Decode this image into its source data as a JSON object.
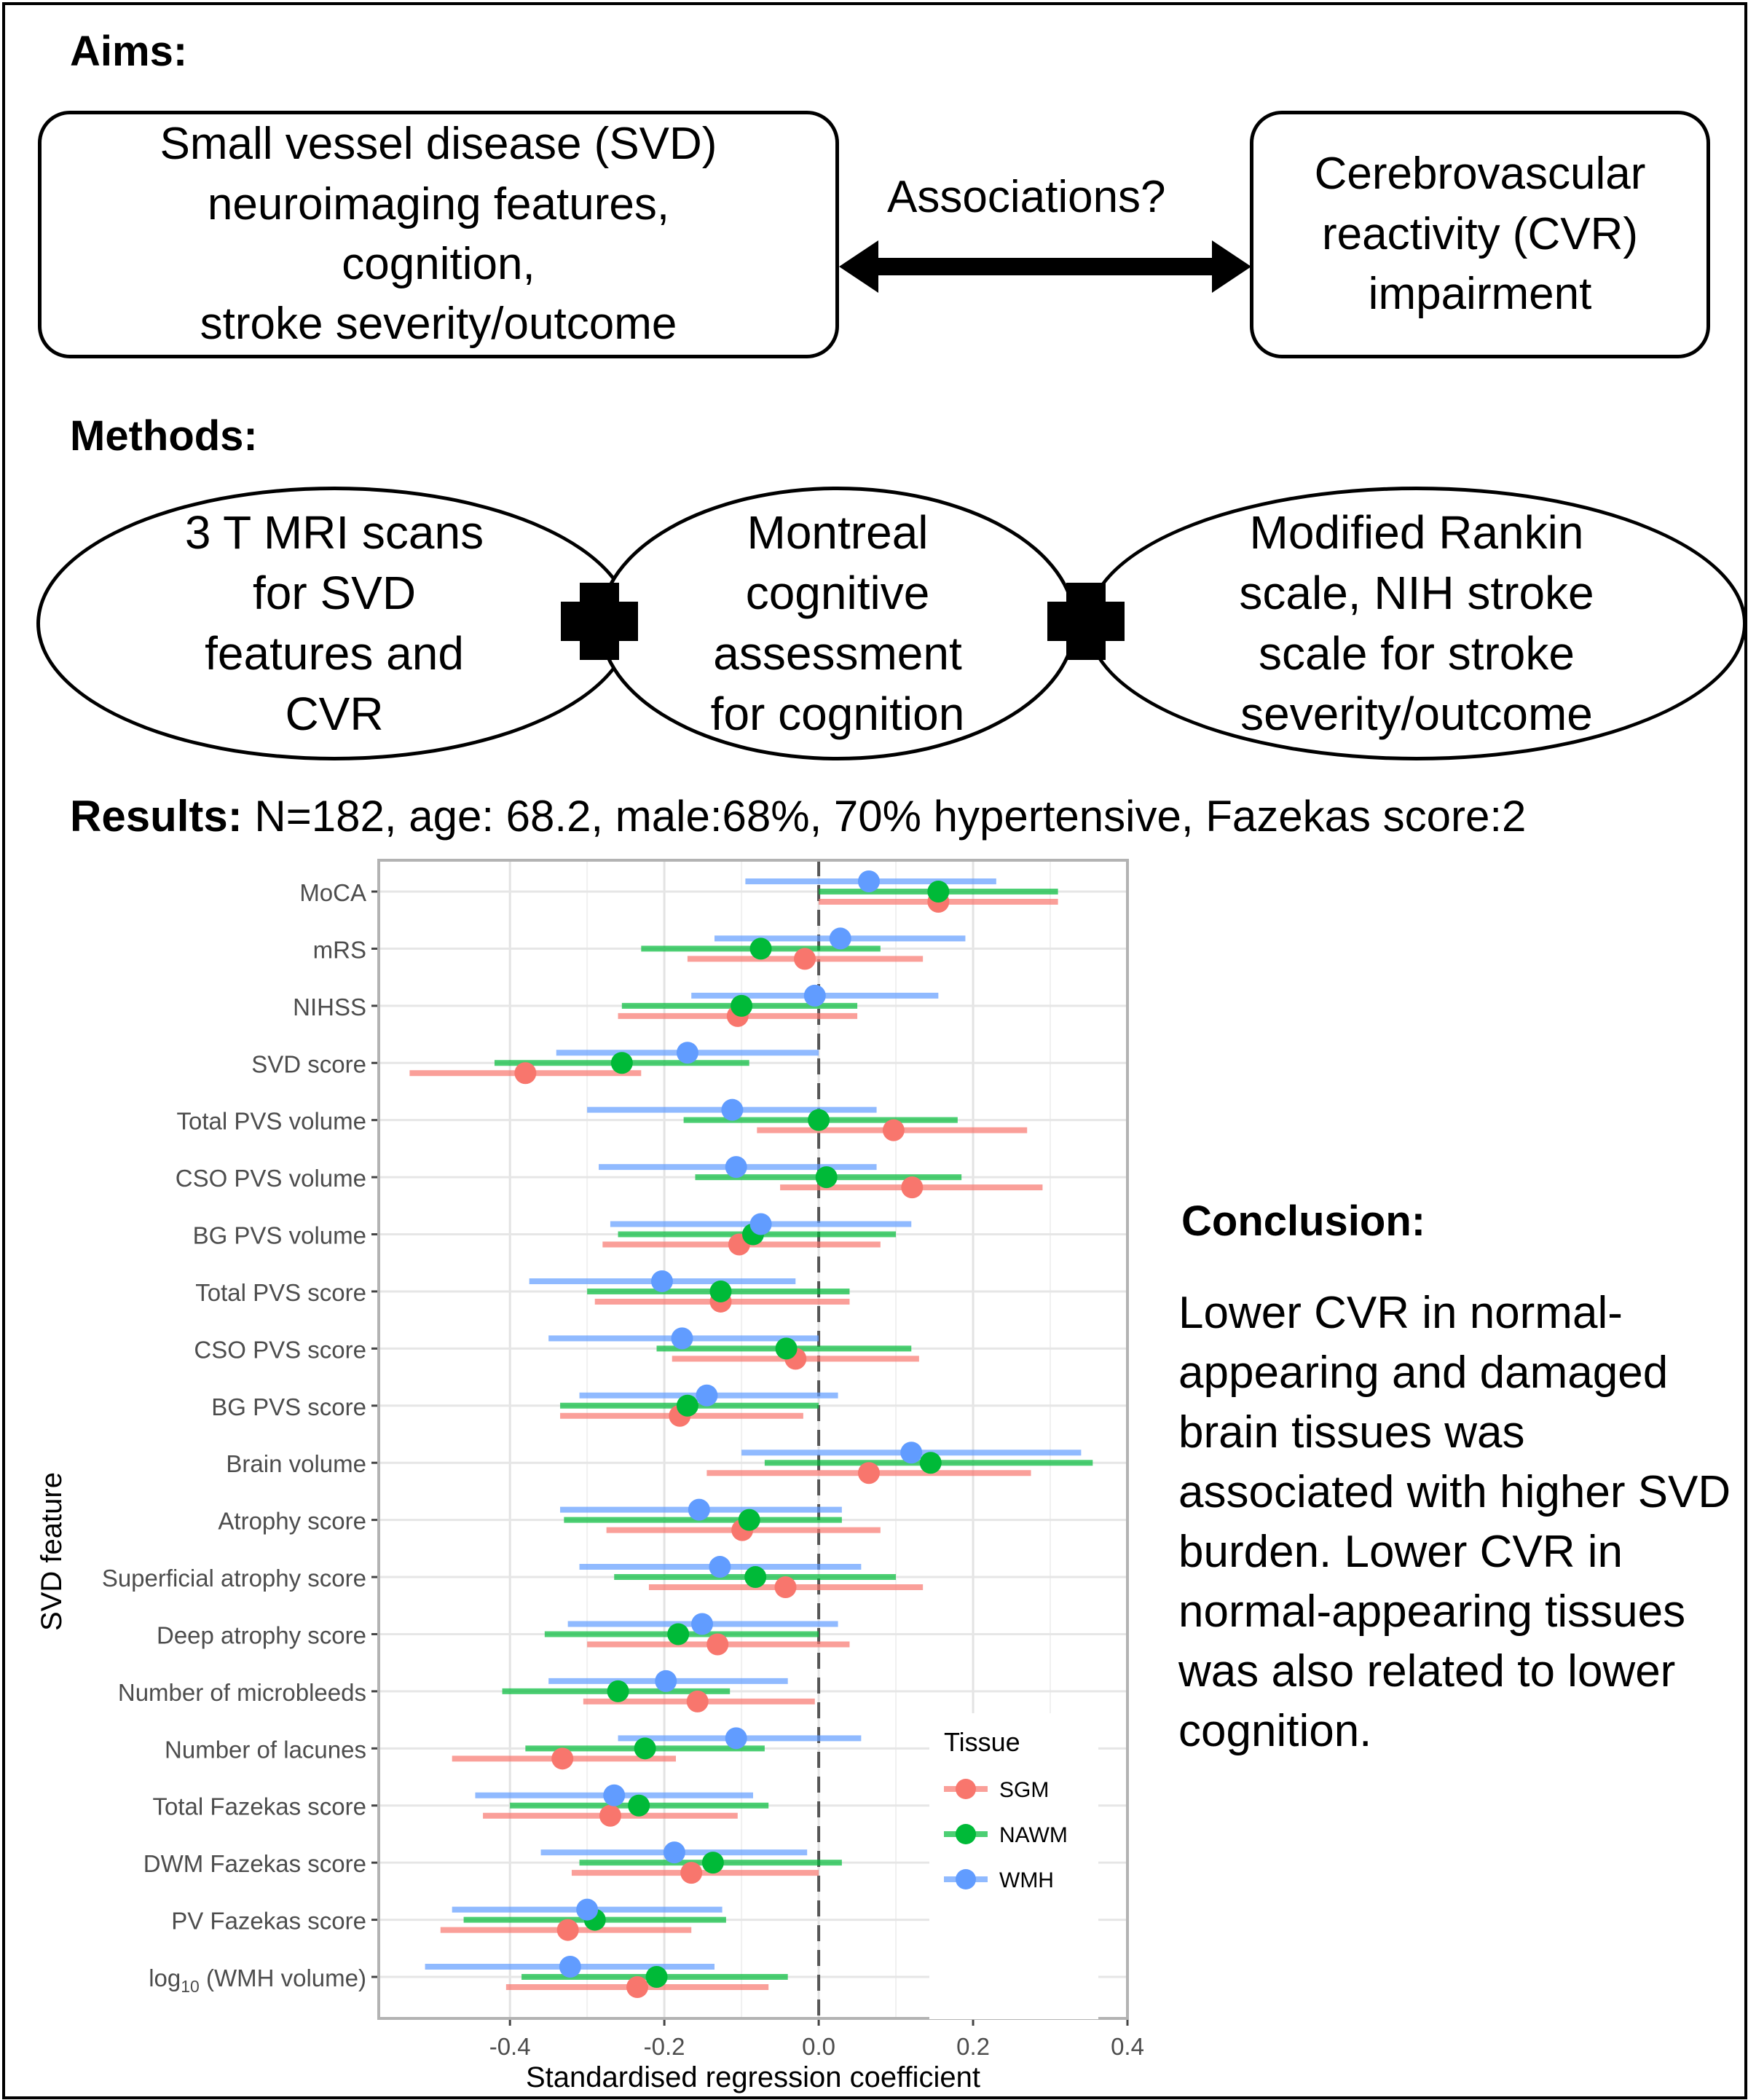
{
  "aims": {
    "heading": "Aims:",
    "left_box": "Small vessel disease (SVD)\nneuroimaging features,\ncognition,\nstroke severity/outcome",
    "arrow_label": "Associations?",
    "right_box": "Cerebrovascular\nreactivity (CVR)\nimpairment"
  },
  "methods": {
    "heading": "Methods:",
    "ellipses": [
      "3 T MRI scans\nfor SVD\nfeatures and\nCVR",
      "Montreal\ncognitive\nassessment\nfor cognition",
      "Modified Rankin\nscale, NIH stroke\nscale for stroke\nseverity/outcome"
    ]
  },
  "results": {
    "heading": "Results:",
    "summary": "N=182, age: 68.2, male:68%, 70% hypertensive, Fazekas score:2"
  },
  "conclusion": {
    "heading": "Conclusion:",
    "text": "Lower CVR in normal-appearing and damaged brain tissues was associated with higher SVD burden. Lower CVR in normal-appearing tissues was also related to lower cognition."
  },
  "colors": {
    "SGM": "#F8766D",
    "NAWM": "#00BA38",
    "WMH": "#619CFF"
  },
  "chart_data": {
    "type": "forest",
    "xlabel": "Standardised regression coefficient",
    "ylabel": "SVD feature",
    "xlim": [
      -0.57,
      0.4
    ],
    "xticks": [
      -0.4,
      -0.2,
      0.0,
      0.2,
      0.4
    ],
    "xtick_labels": [
      "-0.4",
      "-0.2",
      "0.0",
      "0.2",
      "0.4"
    ],
    "reference_line": 0,
    "grid": true,
    "legend": {
      "title": "Tissue",
      "position": "bottom-right",
      "entries": [
        "SGM",
        "NAWM",
        "WMH"
      ]
    },
    "features": [
      "MoCA",
      "mRS",
      "NIHSS",
      "SVD score",
      "Total PVS volume",
      "CSO PVS volume",
      "BG PVS volume",
      "Total PVS score",
      "CSO PVS score",
      "BG PVS score",
      "Brain volume",
      "Atrophy score",
      "Superficial atrophy score",
      "Deep atrophy score",
      "Number of microbleeds",
      "Number of lacunes",
      "Total Fazekas score",
      "DWM Fazekas score",
      "PV Fazekas score",
      "log10 (WMH volume)"
    ],
    "series": [
      {
        "name": "SGM",
        "estimate": [
          0.155,
          -0.018,
          -0.105,
          -0.38,
          0.097,
          0.121,
          -0.103,
          -0.127,
          -0.03,
          -0.18,
          0.065,
          -0.099,
          -0.043,
          -0.131,
          -0.157,
          -0.332,
          -0.27,
          -0.165,
          -0.325,
          -0.235
        ],
        "lower": [
          0.0,
          -0.17,
          -0.26,
          -0.53,
          -0.08,
          -0.05,
          -0.28,
          -0.29,
          -0.19,
          -0.335,
          -0.145,
          -0.275,
          -0.22,
          -0.3,
          -0.305,
          -0.475,
          -0.435,
          -0.32,
          -0.49,
          -0.405
        ],
        "upper": [
          0.31,
          0.135,
          0.05,
          -0.23,
          0.27,
          0.29,
          0.08,
          0.04,
          0.13,
          -0.02,
          0.275,
          0.08,
          0.135,
          0.04,
          -0.005,
          -0.185,
          -0.105,
          0.0,
          -0.165,
          -0.065
        ]
      },
      {
        "name": "NAWM",
        "estimate": [
          0.155,
          -0.075,
          -0.1,
          -0.255,
          0.0,
          0.01,
          -0.085,
          -0.127,
          -0.042,
          -0.17,
          0.145,
          -0.09,
          -0.082,
          -0.182,
          -0.26,
          -0.225,
          -0.233,
          -0.137,
          -0.29,
          -0.21
        ],
        "lower": [
          0.0,
          -0.23,
          -0.255,
          -0.42,
          -0.175,
          -0.16,
          -0.26,
          -0.3,
          -0.21,
          -0.335,
          -0.07,
          -0.33,
          -0.265,
          -0.355,
          -0.41,
          -0.38,
          -0.4,
          -0.31,
          -0.46,
          -0.385
        ],
        "upper": [
          0.31,
          0.08,
          0.05,
          -0.09,
          0.18,
          0.185,
          0.1,
          0.04,
          0.12,
          0.0,
          0.355,
          0.03,
          0.1,
          0.0,
          -0.115,
          -0.07,
          -0.065,
          0.03,
          -0.12,
          -0.04
        ]
      },
      {
        "name": "WMH",
        "estimate": [
          0.065,
          0.028,
          -0.005,
          -0.17,
          -0.112,
          -0.107,
          -0.075,
          -0.203,
          -0.177,
          -0.145,
          0.12,
          -0.155,
          -0.128,
          -0.151,
          -0.198,
          -0.107,
          -0.265,
          -0.187,
          -0.3,
          -0.322
        ],
        "lower": [
          -0.095,
          -0.135,
          -0.165,
          -0.34,
          -0.3,
          -0.285,
          -0.27,
          -0.375,
          -0.35,
          -0.31,
          -0.1,
          -0.335,
          -0.31,
          -0.325,
          -0.35,
          -0.26,
          -0.445,
          -0.36,
          -0.475,
          -0.51
        ],
        "upper": [
          0.23,
          0.19,
          0.155,
          0.0,
          0.075,
          0.075,
          0.12,
          -0.03,
          0.0,
          0.025,
          0.34,
          0.03,
          0.055,
          0.025,
          -0.04,
          0.055,
          -0.085,
          -0.015,
          -0.125,
          -0.135
        ]
      }
    ]
  }
}
